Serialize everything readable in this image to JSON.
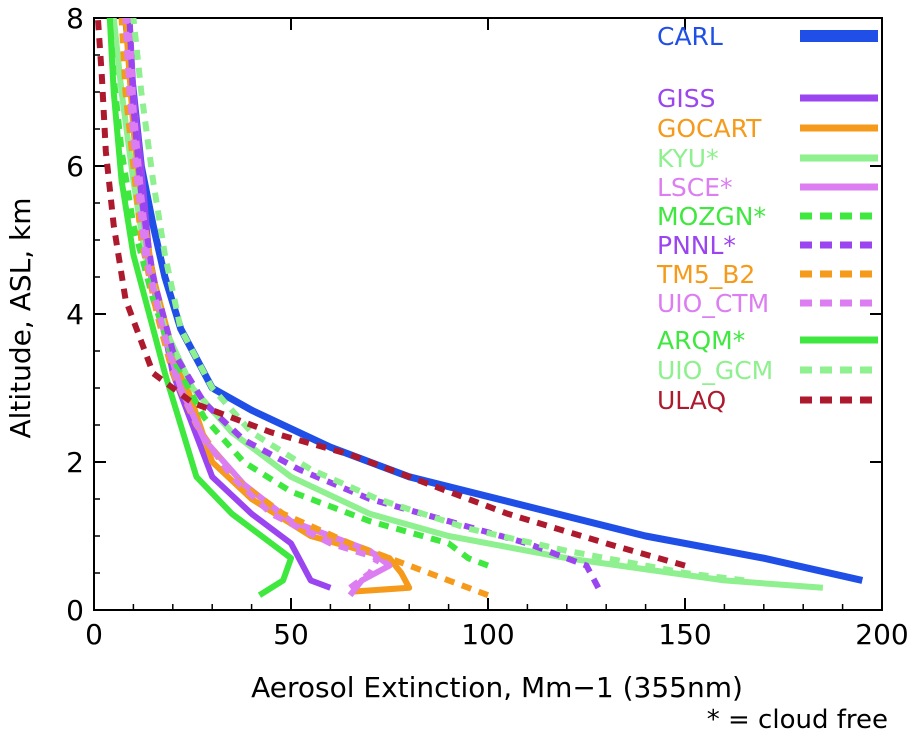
{
  "colors": {
    "CARL": "#1f4fe6",
    "GISS": "#9a45f0",
    "GOCART": "#f59a1a",
    "KYU": "#8ef08e",
    "LSCE": "#dc7ef2",
    "MOZGN": "#3ee83e",
    "PNNL": "#9a45f0",
    "TM5_B2": "#f59a1a",
    "UIO_CTM": "#dc7ef2",
    "ARQM": "#3ee83e",
    "UIO_GCM": "#8ef08e",
    "ULAQ": "#ad1a2e"
  },
  "chart_data": {
    "type": "line",
    "title": "",
    "xlabel": "Aerosol Extinction, Mm−1 (355nm)",
    "ylabel": "Altitude, ASL, km",
    "xlim": [
      0,
      200
    ],
    "ylim": [
      0,
      8
    ],
    "xticks": [
      "0",
      "50",
      "100",
      "150",
      "200"
    ],
    "yticks": [
      "0",
      "2",
      "4",
      "6",
      "8"
    ],
    "grid": false,
    "legend_position": "top-right",
    "footnote": "* = cloud free",
    "series": [
      {
        "name": "CARL",
        "style": "solid",
        "x": [
          195,
          170,
          140,
          110,
          80,
          60,
          40,
          30,
          22,
          18,
          15,
          12,
          10,
          8
        ],
        "y": [
          0.4,
          0.7,
          1.0,
          1.4,
          1.8,
          2.2,
          2.7,
          3.0,
          3.8,
          4.5,
          5.2,
          6.0,
          7.0,
          8.0
        ]
      },
      {
        "name": "GISS",
        "style": "solid",
        "x": [
          60,
          55,
          52,
          50,
          40,
          30,
          25,
          20,
          17,
          14,
          12,
          10,
          9
        ],
        "y": [
          0.3,
          0.4,
          0.7,
          0.9,
          1.3,
          1.8,
          2.5,
          3.2,
          4.0,
          4.8,
          6.0,
          7.0,
          8.0
        ]
      },
      {
        "name": "GOCART",
        "style": "solid",
        "x": [
          66,
          80,
          78,
          75,
          55,
          40,
          30,
          25,
          20,
          15,
          12,
          10,
          8
        ],
        "y": [
          0.25,
          0.3,
          0.5,
          0.7,
          1.0,
          1.5,
          2.0,
          2.8,
          3.5,
          4.5,
          5.5,
          6.5,
          8.0
        ]
      },
      {
        "name": "KYU*",
        "style": "solid",
        "x": [
          185,
          160,
          120,
          90,
          70,
          50,
          35,
          25,
          18,
          13,
          10,
          7,
          5
        ],
        "y": [
          0.3,
          0.4,
          0.7,
          1.0,
          1.3,
          1.8,
          2.4,
          3.0,
          3.8,
          4.8,
          5.8,
          7.0,
          8.0
        ]
      },
      {
        "name": "LSCE*",
        "style": "solid",
        "x": [
          65,
          68,
          75,
          70,
          50,
          38,
          28,
          22,
          18,
          14,
          12,
          10,
          9
        ],
        "y": [
          0.2,
          0.4,
          0.6,
          0.8,
          1.2,
          1.7,
          2.3,
          3.0,
          3.7,
          4.6,
          5.6,
          6.8,
          8.0
        ]
      },
      {
        "name": "MOZGN*",
        "style": "dash",
        "x": [
          100,
          95,
          90,
          70,
          50,
          38,
          28,
          20,
          15,
          10,
          7,
          5,
          4
        ],
        "y": [
          0.6,
          0.7,
          0.9,
          1.2,
          1.6,
          2.0,
          2.6,
          3.4,
          4.2,
          5.2,
          6.2,
          7.2,
          8.0
        ]
      },
      {
        "name": "PNNL*",
        "style": "dash",
        "x": [
          128,
          125,
          110,
          90,
          70,
          52,
          38,
          28,
          20,
          15,
          12,
          10,
          9
        ],
        "y": [
          0.3,
          0.6,
          0.9,
          1.2,
          1.5,
          1.9,
          2.3,
          2.8,
          3.5,
          4.5,
          5.6,
          6.8,
          8.0
        ]
      },
      {
        "name": "TM5_B2",
        "style": "dash",
        "x": [
          100,
          90,
          80,
          65,
          48,
          35,
          26,
          20,
          16,
          12,
          10,
          8,
          7
        ],
        "y": [
          0.2,
          0.4,
          0.6,
          0.9,
          1.3,
          1.8,
          2.5,
          3.2,
          4.0,
          5.0,
          6.0,
          7.0,
          8.0
        ]
      },
      {
        "name": "UIO_CTM",
        "style": "dash",
        "x": [
          65,
          70,
          72,
          60,
          45,
          35,
          27,
          21,
          17,
          13,
          11,
          9,
          8
        ],
        "y": [
          0.3,
          0.5,
          0.7,
          0.9,
          1.3,
          1.8,
          2.4,
          3.1,
          3.9,
          4.8,
          5.8,
          7.0,
          8.0
        ]
      },
      {
        "name": "ARQM*",
        "style": "solid",
        "x": [
          42,
          48,
          50,
          45,
          35,
          26,
          22,
          18,
          14,
          10,
          7,
          5,
          4
        ],
        "y": [
          0.2,
          0.4,
          0.7,
          0.9,
          1.3,
          1.8,
          2.5,
          3.2,
          4.0,
          4.8,
          5.8,
          7.0,
          8.0
        ]
      },
      {
        "name": "UIO_GCM",
        "style": "dash",
        "x": [
          165,
          150,
          120,
          95,
          72,
          55,
          40,
          30,
          22,
          18,
          15,
          12,
          10
        ],
        "y": [
          0.4,
          0.5,
          0.8,
          1.1,
          1.5,
          1.9,
          2.4,
          3.0,
          3.8,
          4.8,
          5.8,
          7.0,
          8.0
        ]
      },
      {
        "name": "ULAQ",
        "style": "dash",
        "x": [
          150,
          130,
          105,
          85,
          65,
          45,
          25,
          15,
          8,
          5,
          3,
          2,
          1
        ],
        "y": [
          0.6,
          0.9,
          1.3,
          1.7,
          2.1,
          2.4,
          2.8,
          3.2,
          4.2,
          5.2,
          6.2,
          7.2,
          8.0
        ]
      }
    ]
  }
}
